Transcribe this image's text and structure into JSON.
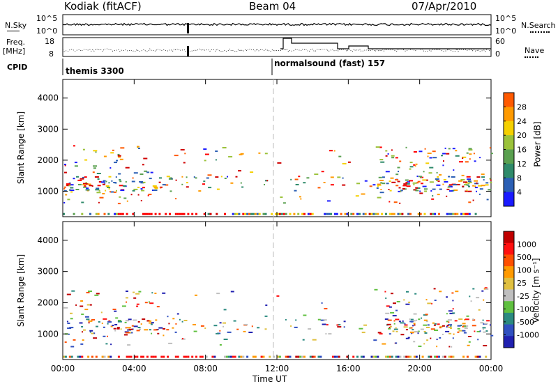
{
  "header": {
    "site": "Kodiak (fitACF)",
    "beam": "Beam 04",
    "date": "07/Apr/2010"
  },
  "side_labels": {
    "nsky": "N.Sky",
    "freq": "Freq.",
    "freq_unit": "[MHz]",
    "cpid": "CPID",
    "nsearch": "N.Search",
    "nave": "Nave"
  },
  "top_ticks": {
    "nsky_hi": "10^5",
    "nsky_lo": "10^0",
    "nsearch_hi": "10^5",
    "nsearch_lo": "10^0",
    "freq_hi": "18",
    "freq_lo": "8",
    "nave_hi": "60",
    "nave_lo": "0"
  },
  "cpid_labels": [
    "themis 3300",
    "normalsound (fast) 157"
  ],
  "colors": {
    "power": [
      "#1a1aff",
      "#2b5fb4",
      "#2f8a6a",
      "#5aa050",
      "#9bc23a",
      "#f5d000",
      "#ff9a00",
      "#ff5a00",
      "#ff0000",
      "#d00000"
    ],
    "velocity": [
      "#2020b0",
      "#3050c0",
      "#2b8a80",
      "#60c040",
      "#bfbfbf",
      "#e0c040",
      "#ff9a00",
      "#ff5000",
      "#ff1010",
      "#c00000"
    ],
    "dash_line": "#bbbbbb"
  },
  "chart_data": [
    {
      "type": "heatmap",
      "title": "Power",
      "ylabel": "Slant Range [km]",
      "xlabel": "",
      "ylim": [
        180,
        4600
      ],
      "yticks": [
        "1000",
        "2000",
        "3000",
        "4000"
      ],
      "colorbar": {
        "label": "Power [dB]",
        "ticks": [
          "4",
          "8",
          "12",
          "16",
          "20",
          "24",
          "28"
        ],
        "range": [
          0,
          32
        ]
      }
    },
    {
      "type": "heatmap",
      "title": "Velocity",
      "ylabel": "Slant Range [km]",
      "xlabel": "Time UT",
      "ylim": [
        180,
        4600
      ],
      "yticks": [
        "1000",
        "2000",
        "3000",
        "4000"
      ],
      "xticks": [
        "00:00",
        "04:00",
        "08:00",
        "12:00",
        "16:00",
        "20:00",
        "00:00"
      ],
      "colorbar": {
        "label": "Velocity [m s⁻¹]",
        "ticks": [
          "1000",
          "500",
          "100",
          "25",
          "-25",
          "-100",
          "-500",
          "-1000"
        ]
      }
    }
  ]
}
